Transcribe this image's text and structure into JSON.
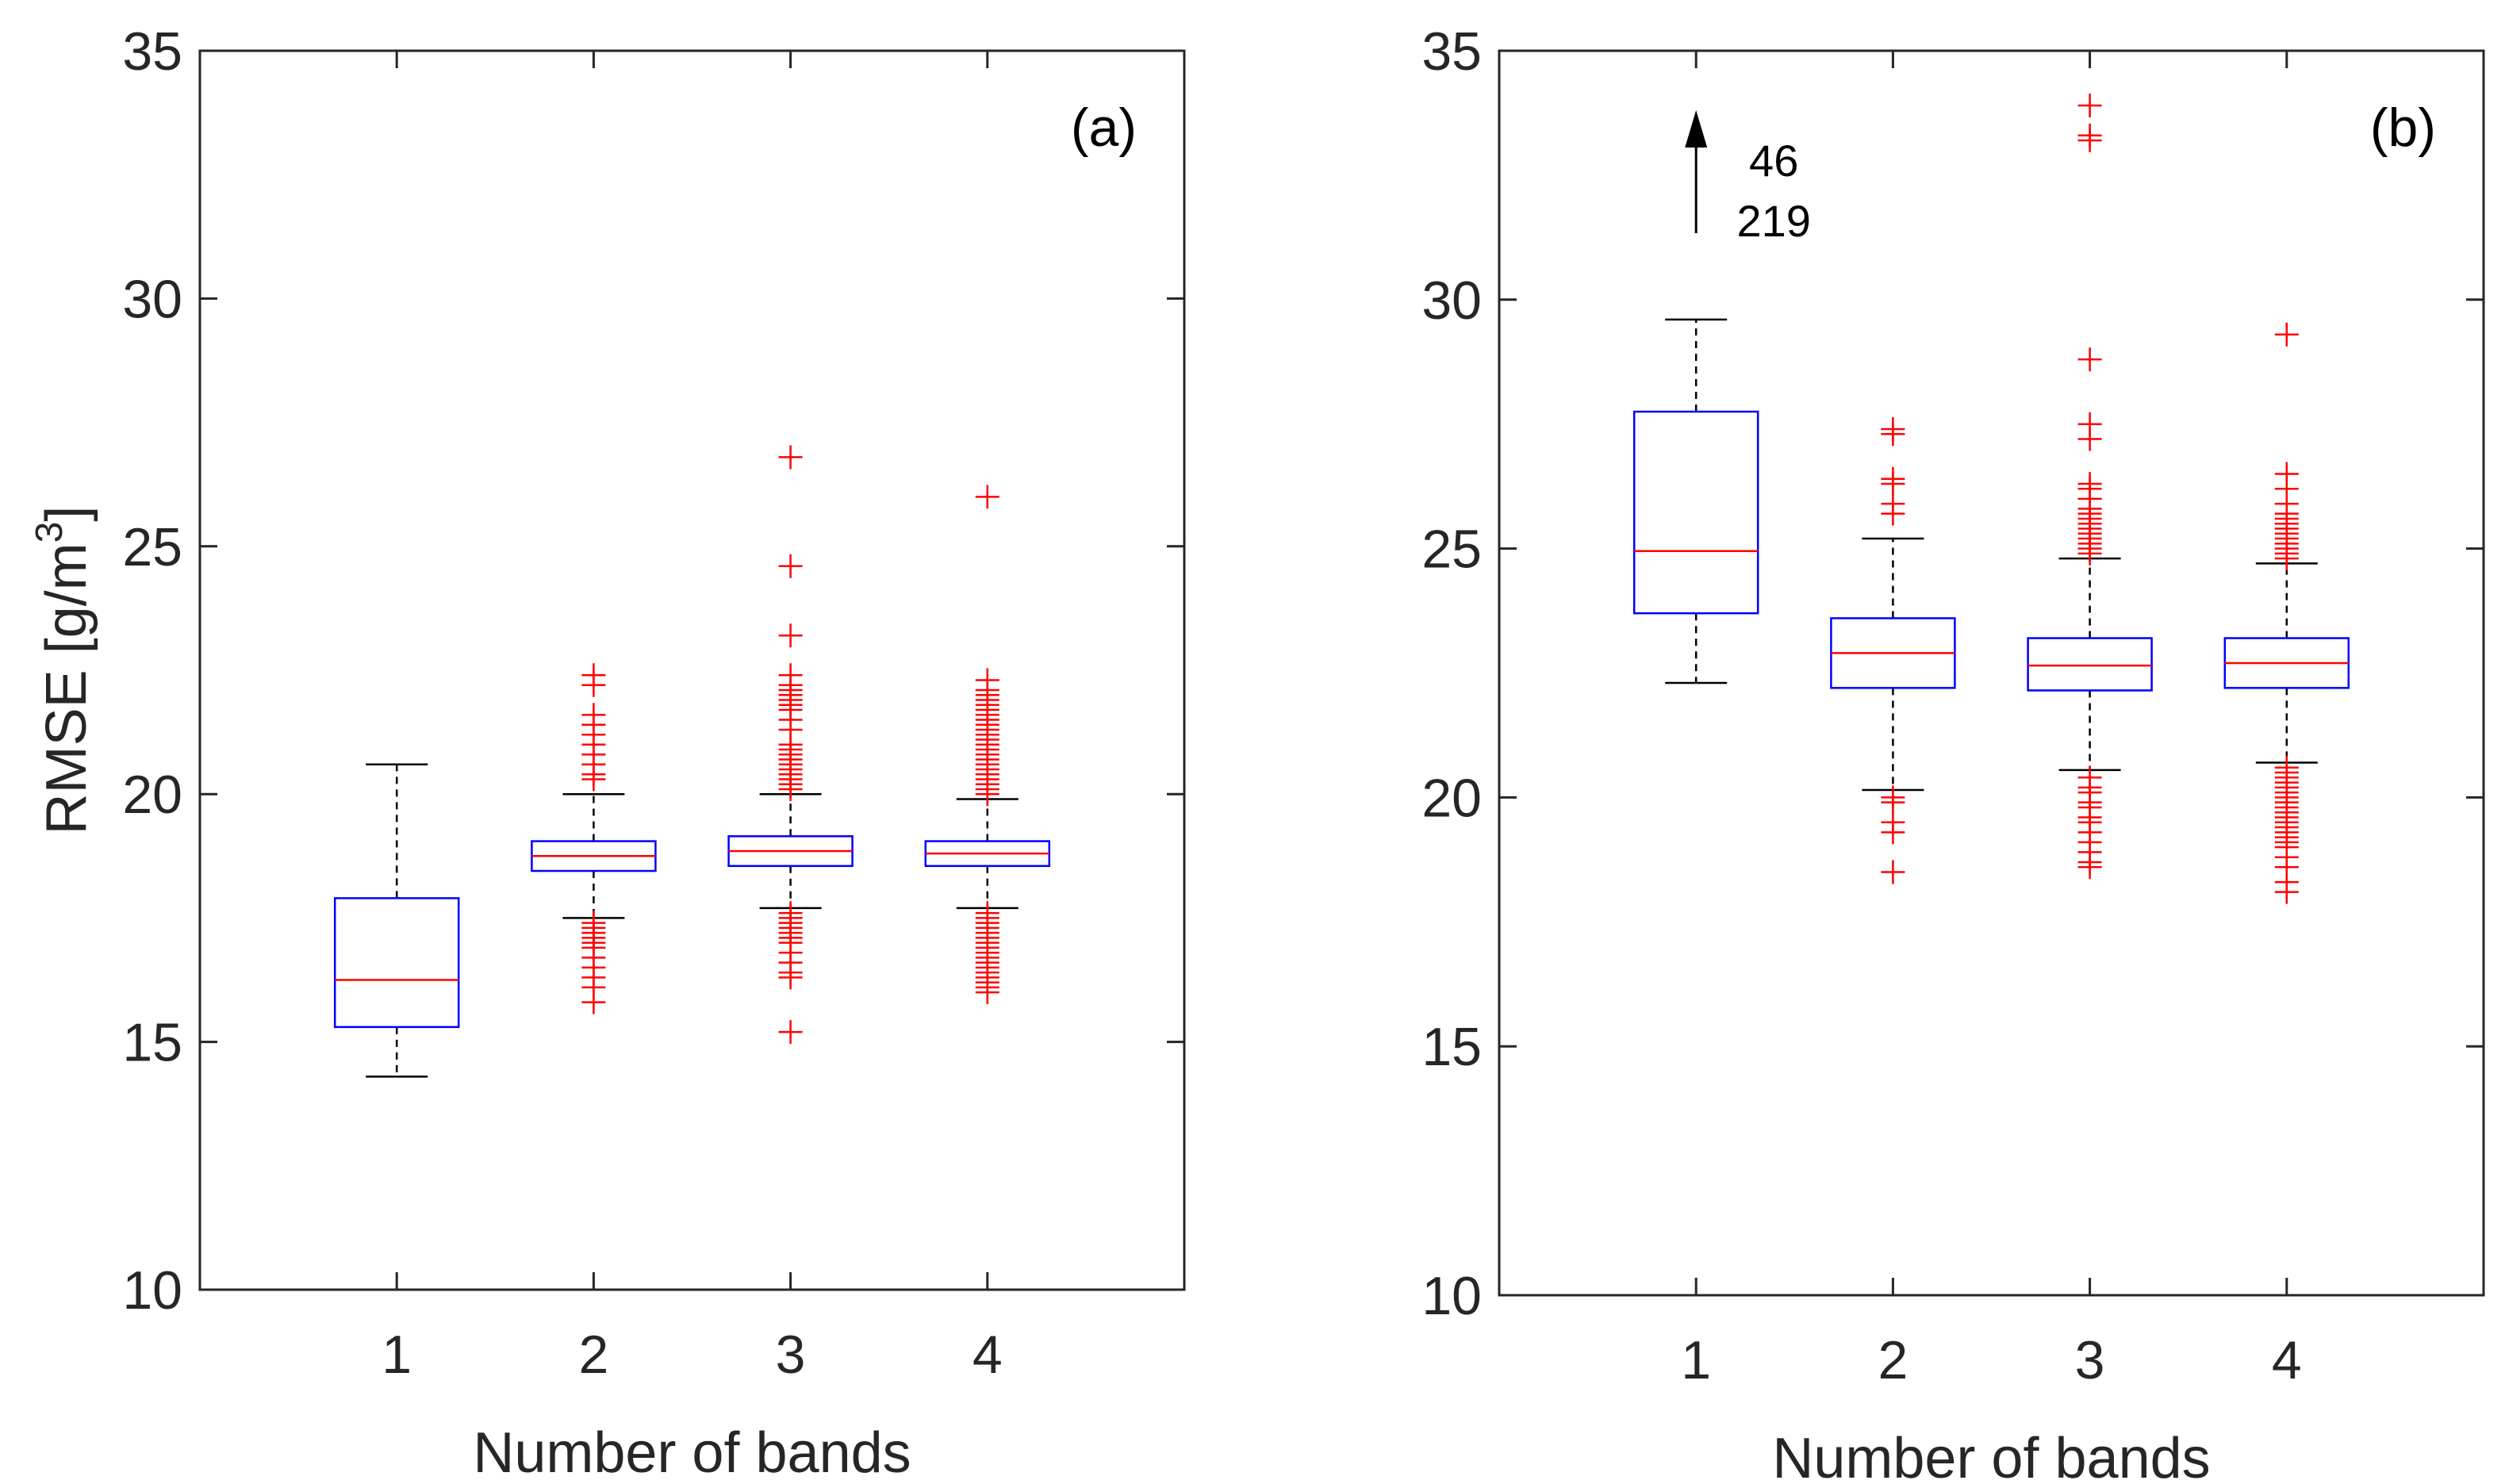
{
  "chart_data": [
    {
      "type": "boxplot",
      "panel_label": "(a)",
      "xlabel": "Number of bands",
      "ylabel": "RMSE [g/m",
      "ylabel_superscript": "3",
      "ylabel_close": "]",
      "ylim": [
        10,
        35
      ],
      "yticks": [
        10,
        15,
        20,
        25,
        30,
        35
      ],
      "categories": [
        "1",
        "2",
        "3",
        "4"
      ],
      "boxes": [
        {
          "category": "1",
          "whisker_low": 14.3,
          "q1": 15.3,
          "median": 16.25,
          "q3": 17.9,
          "whisker_high": 20.6,
          "outliers": []
        },
        {
          "category": "2",
          "whisker_low": 17.5,
          "q1": 18.45,
          "median": 18.75,
          "q3": 19.05,
          "whisker_high": 20.0,
          "outliers": [
            15.8,
            16.1,
            16.3,
            16.5,
            16.7,
            16.9,
            17.0,
            17.1,
            17.2,
            17.3,
            17.4,
            20.3,
            20.4,
            20.6,
            20.8,
            21.0,
            21.2,
            21.4,
            21.6,
            22.2,
            22.4
          ]
        },
        {
          "category": "3",
          "whisker_low": 17.7,
          "q1": 18.55,
          "median": 18.85,
          "q3": 19.15,
          "whisker_high": 20.0,
          "outliers": [
            15.2,
            16.3,
            16.4,
            16.6,
            16.8,
            17.0,
            17.1,
            17.2,
            17.3,
            17.4,
            17.5,
            17.6,
            20.1,
            20.2,
            20.3,
            20.4,
            20.5,
            20.6,
            20.7,
            20.8,
            20.9,
            21.0,
            21.3,
            21.5,
            21.7,
            21.8,
            21.9,
            22.0,
            22.1,
            22.2,
            22.4,
            23.2,
            24.6,
            26.8
          ]
        },
        {
          "category": "4",
          "whisker_low": 17.7,
          "q1": 18.55,
          "median": 18.8,
          "q3": 19.05,
          "whisker_high": 19.9,
          "outliers": [
            16.0,
            16.1,
            16.2,
            16.3,
            16.4,
            16.5,
            16.6,
            16.7,
            16.8,
            16.9,
            17.0,
            17.1,
            17.2,
            17.3,
            17.4,
            17.5,
            17.6,
            20.0,
            20.1,
            20.2,
            20.3,
            20.4,
            20.5,
            20.6,
            20.7,
            20.8,
            20.9,
            21.0,
            21.1,
            21.2,
            21.3,
            21.4,
            21.5,
            21.6,
            21.7,
            21.8,
            21.9,
            22.0,
            22.1,
            22.3,
            26.0
          ]
        }
      ]
    },
    {
      "type": "boxplot",
      "panel_label": "(b)",
      "xlabel": "Number of bands",
      "ylim": [
        10,
        35
      ],
      "yticks": [
        10,
        15,
        20,
        25,
        30,
        35
      ],
      "categories": [
        "1",
        "2",
        "3",
        "4"
      ],
      "annotation": {
        "category": "1",
        "values": [
          "46",
          "219"
        ],
        "note": "arrow"
      },
      "boxes": [
        {
          "category": "1",
          "whisker_low": 22.3,
          "q1": 23.7,
          "median": 24.95,
          "q3": 27.75,
          "whisker_high": 29.6,
          "outliers": []
        },
        {
          "category": "2",
          "whisker_low": 20.15,
          "q1": 22.2,
          "median": 22.9,
          "q3": 23.6,
          "whisker_high": 25.2,
          "outliers": [
            18.5,
            19.3,
            19.5,
            19.9,
            20.0,
            25.7,
            25.9,
            26.3,
            26.4,
            27.3,
            27.4
          ]
        },
        {
          "category": "3",
          "whisker_low": 20.55,
          "q1": 22.15,
          "median": 22.65,
          "q3": 23.2,
          "whisker_high": 24.8,
          "outliers": [
            18.6,
            18.7,
            18.9,
            19.1,
            19.3,
            19.5,
            19.6,
            19.8,
            19.9,
            20.1,
            20.2,
            20.4,
            24.9,
            25.0,
            25.1,
            25.2,
            25.3,
            25.4,
            25.5,
            25.6,
            25.7,
            25.8,
            26.0,
            26.2,
            26.3,
            27.2,
            27.5,
            28.8,
            33.2,
            33.3,
            33.9
          ]
        },
        {
          "category": "4",
          "whisker_low": 20.7,
          "q1": 22.2,
          "median": 22.7,
          "q3": 23.2,
          "whisker_high": 24.7,
          "outliers": [
            18.1,
            18.3,
            18.6,
            18.8,
            19.0,
            19.1,
            19.2,
            19.3,
            19.4,
            19.5,
            19.6,
            19.7,
            19.8,
            19.9,
            20.0,
            20.1,
            20.2,
            20.3,
            20.4,
            20.5,
            20.6,
            24.8,
            24.9,
            25.0,
            25.1,
            25.2,
            25.3,
            25.4,
            25.5,
            25.6,
            25.7,
            25.9,
            26.2,
            26.5,
            29.3
          ]
        }
      ]
    }
  ],
  "colors": {
    "box": "#0000ff",
    "median": "#ff0000",
    "outlier": "#ff0000",
    "whisker": "#000000",
    "axis": "#262626"
  }
}
